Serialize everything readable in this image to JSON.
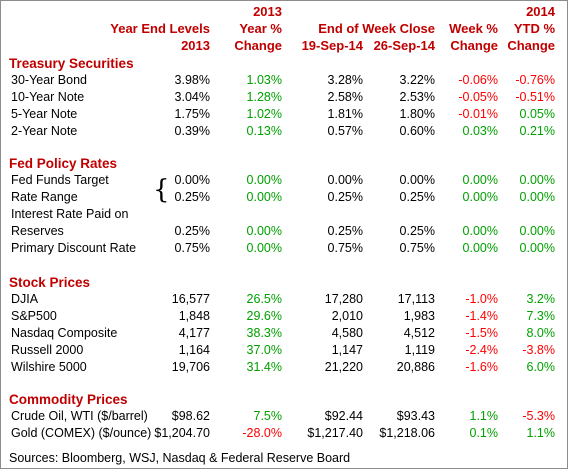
{
  "header": {
    "year_end_levels": "Year End Levels",
    "year_end_2013": "2013",
    "yearpct_2013": "2013",
    "yearpct_label": "Year %",
    "yearpct_change": "Change",
    "end_of_week": "End of Week Close",
    "date1": "19-Sep-14",
    "date2": "26-Sep-14",
    "weekpct_label": "Week %",
    "weekpct_change": "Change",
    "ytd_2014": "2014",
    "ytd_label": "YTD %",
    "ytd_change": "Change"
  },
  "sections": [
    {
      "title": "Treasury Securities",
      "rows": [
        {
          "label": "30-Year Bond",
          "ye": "3.98%",
          "yp": "1.03%",
          "c1": "3.28%",
          "c2": "3.22%",
          "wk": "-0.06%",
          "ytd": "-0.76%"
        },
        {
          "label": "10-Year Note",
          "ye": "3.04%",
          "yp": "1.28%",
          "c1": "2.58%",
          "c2": "2.53%",
          "wk": "-0.05%",
          "ytd": "-0.51%"
        },
        {
          "label": "5-Year Note",
          "ye": "1.75%",
          "yp": "1.02%",
          "c1": "1.81%",
          "c2": "1.80%",
          "wk": "-0.01%",
          "ytd": "0.05%"
        },
        {
          "label": "2-Year Note",
          "ye": "0.39%",
          "yp": "0.13%",
          "c1": "0.57%",
          "c2": "0.60%",
          "wk": "0.03%",
          "ytd": "0.21%"
        }
      ]
    },
    {
      "title": "Fed Policy Rates",
      "rows": [
        {
          "label": "Fed Funds Target",
          "ye": "0.00%",
          "yp": "0.00%",
          "c1": "0.00%",
          "c2": "0.00%",
          "wk": "0.00%",
          "ytd": "0.00%"
        },
        {
          "label": "Rate Range",
          "ye": "0.25%",
          "yp": "0.00%",
          "c1": "0.25%",
          "c2": "0.25%",
          "wk": "0.00%",
          "ytd": "0.00%"
        },
        {
          "label": "Interest Rate Paid on"
        },
        {
          "label": "Reserves",
          "ye": "0.25%",
          "yp": "0.00%",
          "c1": "0.25%",
          "c2": "0.25%",
          "wk": "0.00%",
          "ytd": "0.00%"
        },
        {
          "label": "Primary Discount Rate",
          "ye": "0.75%",
          "yp": "0.00%",
          "c1": "0.75%",
          "c2": "0.75%",
          "wk": "0.00%",
          "ytd": "0.00%"
        }
      ]
    },
    {
      "title": "Stock Prices",
      "rows": [
        {
          "label": "DJIA",
          "ye": "16,577",
          "yp": "26.5%",
          "c1": "17,280",
          "c2": "17,113",
          "wk": "-1.0%",
          "ytd": "3.2%"
        },
        {
          "label": "S&P500",
          "ye": "1,848",
          "yp": "29.6%",
          "c1": "2,010",
          "c2": "1,983",
          "wk": "-1.4%",
          "ytd": "7.3%"
        },
        {
          "label": "Nasdaq Composite",
          "ye": "4,177",
          "yp": "38.3%",
          "c1": "4,580",
          "c2": "4,512",
          "wk": "-1.5%",
          "ytd": "8.0%"
        },
        {
          "label": "Russell 2000",
          "ye": "1,164",
          "yp": "37.0%",
          "c1": "1,147",
          "c2": "1,119",
          "wk": "-2.4%",
          "ytd": "-3.8%"
        },
        {
          "label": "Wilshire 5000",
          "ye": "19,706",
          "yp": "31.4%",
          "c1": "21,220",
          "c2": "20,886",
          "wk": "-1.6%",
          "ytd": "6.0%"
        }
      ]
    },
    {
      "title": "Commodity Prices",
      "rows": [
        {
          "label": "Crude Oil, WTI ($/barrel)",
          "ye": "$98.62",
          "yp": "7.5%",
          "c1": "$92.44",
          "c2": "$93.43",
          "wk": "1.1%",
          "ytd": "-5.3%"
        },
        {
          "label": "Gold (COMEX) ($/ounce)",
          "ye": "$1,204.70",
          "yp": "-28.0%",
          "c1": "$1,217.40",
          "c2": "$1,218.06",
          "wk": "0.1%",
          "ytd": "1.1%"
        }
      ]
    }
  ],
  "brace": "{",
  "colors": {
    "header": "#c00000",
    "positive": "#00a000",
    "negative": "#ff0000"
  },
  "source": "Sources: Bloomberg, WSJ, Nasdaq & Federal Reserve Board"
}
